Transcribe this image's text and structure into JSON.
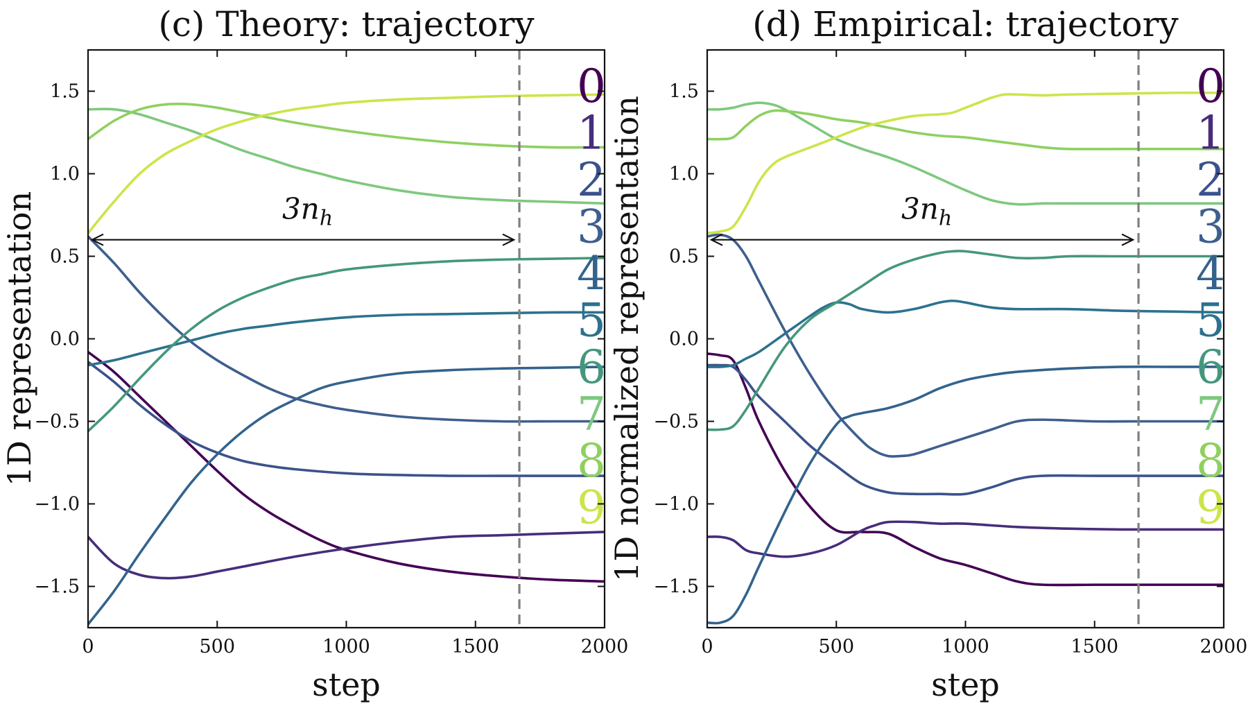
{
  "chart_data": [
    {
      "type": "line",
      "title": "(c) Theory: trajectory",
      "xlabel": "step",
      "ylabel": "1D representation",
      "xlim": [
        0,
        2000
      ],
      "ylim": [
        -1.75,
        1.75
      ],
      "xticks": [
        0,
        500,
        1000,
        1500,
        2000
      ],
      "yticks": [
        -1.5,
        -1.0,
        -0.5,
        0.0,
        0.5,
        1.0,
        1.5
      ],
      "xtick_labels": [
        "0",
        "500",
        "1000",
        "1500",
        "2000"
      ],
      "ytick_labels": [
        "−1.5",
        "−1.0",
        "−0.5",
        "0.0",
        "0.5",
        "1.0",
        "1.5"
      ],
      "vline": 1670,
      "annotation": {
        "text": "3n",
        "sub": "h",
        "x_start": 0,
        "x_end": 1670,
        "y": 0.6
      },
      "series": [
        {
          "name": "0",
          "color": "#440154",
          "x": [
            0,
            100,
            200,
            300,
            400,
            500,
            600,
            700,
            800,
            900,
            1000,
            1200,
            1400,
            1600,
            1800,
            2000
          ],
          "y": [
            -0.08,
            -0.2,
            -0.35,
            -0.5,
            -0.65,
            -0.8,
            -0.94,
            -1.05,
            -1.14,
            -1.22,
            -1.28,
            -1.36,
            -1.41,
            -1.44,
            -1.46,
            -1.47
          ]
        },
        {
          "name": "1",
          "color": "#472d7b",
          "x": [
            0,
            100,
            200,
            300,
            400,
            500,
            600,
            800,
            1000,
            1200,
            1400,
            1600,
            1800,
            2000
          ],
          "y": [
            -1.2,
            -1.36,
            -1.43,
            -1.45,
            -1.44,
            -1.41,
            -1.38,
            -1.32,
            -1.27,
            -1.23,
            -1.2,
            -1.19,
            -1.18,
            -1.17
          ]
        },
        {
          "name": "2",
          "color": "#3b528b",
          "x": [
            0,
            100,
            200,
            300,
            400,
            500,
            600,
            700,
            800,
            1000,
            1200,
            1400,
            1600,
            1800,
            2000
          ],
          "y": [
            -0.14,
            -0.26,
            -0.4,
            -0.52,
            -0.62,
            -0.69,
            -0.74,
            -0.77,
            -0.79,
            -0.815,
            -0.825,
            -0.83,
            -0.83,
            -0.83,
            -0.83
          ]
        },
        {
          "name": "3",
          "color": "#3e5f8e",
          "x": [
            0,
            100,
            200,
            300,
            400,
            500,
            600,
            700,
            800,
            900,
            1000,
            1200,
            1400,
            1600,
            1800,
            2000
          ],
          "y": [
            0.62,
            0.46,
            0.28,
            0.12,
            -0.02,
            -0.13,
            -0.22,
            -0.3,
            -0.36,
            -0.4,
            -0.43,
            -0.47,
            -0.49,
            -0.5,
            -0.5,
            -0.5
          ]
        },
        {
          "name": "4",
          "color": "#33638d",
          "x": [
            0,
            100,
            200,
            300,
            400,
            500,
            600,
            700,
            800,
            900,
            1000,
            1200,
            1400,
            1600,
            1800,
            2000
          ],
          "y": [
            -1.73,
            -1.53,
            -1.3,
            -1.08,
            -0.87,
            -0.7,
            -0.56,
            -0.45,
            -0.37,
            -0.3,
            -0.26,
            -0.21,
            -0.19,
            -0.18,
            -0.175,
            -0.17
          ]
        },
        {
          "name": "5",
          "color": "#2c728e",
          "x": [
            0,
            100,
            200,
            300,
            400,
            500,
            600,
            700,
            800,
            1000,
            1200,
            1400,
            1600,
            1800,
            2000
          ],
          "y": [
            -0.16,
            -0.13,
            -0.09,
            -0.05,
            -0.01,
            0.03,
            0.06,
            0.08,
            0.1,
            0.13,
            0.145,
            0.15,
            0.155,
            0.16,
            0.16
          ]
        },
        {
          "name": "6",
          "color": "#44977d",
          "x": [
            0,
            100,
            200,
            300,
            400,
            500,
            600,
            700,
            800,
            900,
            1000,
            1200,
            1400,
            1600,
            1800,
            2000
          ],
          "y": [
            -0.56,
            -0.41,
            -0.24,
            -0.08,
            0.06,
            0.17,
            0.25,
            0.31,
            0.36,
            0.39,
            0.42,
            0.45,
            0.47,
            0.48,
            0.485,
            0.49
          ]
        },
        {
          "name": "7",
          "color": "#7ec87e",
          "x": [
            0,
            100,
            200,
            300,
            400,
            500,
            600,
            700,
            800,
            900,
            1000,
            1200,
            1400,
            1600,
            1800,
            2000
          ],
          "y": [
            1.39,
            1.39,
            1.36,
            1.31,
            1.26,
            1.2,
            1.14,
            1.09,
            1.04,
            1.0,
            0.96,
            0.9,
            0.86,
            0.84,
            0.83,
            0.82
          ]
        },
        {
          "name": "8",
          "color": "#8fd060",
          "x": [
            0,
            100,
            200,
            300,
            400,
            500,
            600,
            700,
            800,
            1000,
            1200,
            1400,
            1600,
            1800,
            2000
          ],
          "y": [
            1.21,
            1.32,
            1.39,
            1.42,
            1.42,
            1.4,
            1.37,
            1.34,
            1.31,
            1.26,
            1.22,
            1.19,
            1.17,
            1.16,
            1.16
          ]
        },
        {
          "name": "9",
          "color": "#cde44a",
          "x": [
            0,
            100,
            200,
            300,
            400,
            500,
            600,
            700,
            800,
            900,
            1000,
            1200,
            1400,
            1600,
            1800,
            2000
          ],
          "y": [
            0.64,
            0.83,
            1.0,
            1.12,
            1.2,
            1.27,
            1.32,
            1.36,
            1.39,
            1.41,
            1.43,
            1.45,
            1.46,
            1.47,
            1.475,
            1.48
          ]
        }
      ]
    },
    {
      "type": "line",
      "title": "(d) Empirical: trajectory",
      "xlabel": "step",
      "ylabel": "1D normalized representation",
      "xlim": [
        0,
        2000
      ],
      "ylim": [
        -1.75,
        1.75
      ],
      "xticks": [
        0,
        500,
        1000,
        1500,
        2000
      ],
      "yticks": [
        -1.5,
        -1.0,
        -0.5,
        0.0,
        0.5,
        1.0,
        1.5
      ],
      "xtick_labels": [
        "0",
        "500",
        "1000",
        "1500",
        "2000"
      ],
      "ytick_labels": [
        "−1.5",
        "−1.0",
        "−0.5",
        "0.0",
        "0.5",
        "1.0",
        "1.5"
      ],
      "vline": 1670,
      "annotation": {
        "text": "3n",
        "sub": "h",
        "x_start": 0,
        "x_end": 1670,
        "y": 0.6
      },
      "series": [
        {
          "name": "0",
          "color": "#440154",
          "x": [
            0,
            50,
            100,
            150,
            200,
            300,
            400,
            500,
            600,
            700,
            800,
            900,
            1000,
            1100,
            1200,
            1300,
            1500,
            1700,
            2000
          ],
          "y": [
            -0.09,
            -0.1,
            -0.13,
            -0.3,
            -0.5,
            -0.8,
            -1.02,
            -1.16,
            -1.17,
            -1.18,
            -1.26,
            -1.33,
            -1.37,
            -1.42,
            -1.47,
            -1.49,
            -1.49,
            -1.49,
            -1.49
          ]
        },
        {
          "name": "1",
          "color": "#472d7b",
          "x": [
            0,
            50,
            100,
            150,
            200,
            300,
            400,
            500,
            600,
            650,
            700,
            800,
            900,
            1000,
            1200,
            1400,
            1600,
            1800,
            2000
          ],
          "y": [
            -1.2,
            -1.2,
            -1.22,
            -1.28,
            -1.3,
            -1.32,
            -1.3,
            -1.25,
            -1.16,
            -1.13,
            -1.11,
            -1.11,
            -1.12,
            -1.12,
            -1.14,
            -1.15,
            -1.155,
            -1.155,
            -1.155
          ]
        },
        {
          "name": "2",
          "color": "#3b528b",
          "x": [
            0,
            50,
            100,
            150,
            200,
            300,
            400,
            500,
            600,
            700,
            800,
            900,
            1000,
            1100,
            1200,
            1300,
            1500,
            1700,
            2000
          ],
          "y": [
            -0.16,
            -0.16,
            -0.17,
            -0.25,
            -0.35,
            -0.5,
            -0.65,
            -0.77,
            -0.88,
            -0.93,
            -0.94,
            -0.94,
            -0.94,
            -0.9,
            -0.85,
            -0.83,
            -0.83,
            -0.83,
            -0.83
          ]
        },
        {
          "name": "3",
          "color": "#3e5f8e",
          "x": [
            0,
            50,
            100,
            150,
            200,
            300,
            400,
            500,
            600,
            650,
            700,
            750,
            800,
            900,
            1000,
            1100,
            1200,
            1300,
            1500,
            1700,
            2000
          ],
          "y": [
            0.62,
            0.63,
            0.6,
            0.5,
            0.35,
            0.05,
            -0.22,
            -0.45,
            -0.62,
            -0.68,
            -0.71,
            -0.71,
            -0.7,
            -0.65,
            -0.6,
            -0.55,
            -0.5,
            -0.49,
            -0.5,
            -0.5,
            -0.5
          ]
        },
        {
          "name": "4",
          "color": "#33638d",
          "x": [
            0,
            50,
            100,
            150,
            200,
            300,
            400,
            500,
            550,
            600,
            700,
            800,
            900,
            1000,
            1100,
            1200,
            1400,
            1600,
            1800,
            2000
          ],
          "y": [
            -1.72,
            -1.72,
            -1.68,
            -1.55,
            -1.38,
            -1.05,
            -0.75,
            -0.52,
            -0.47,
            -0.45,
            -0.42,
            -0.37,
            -0.3,
            -0.25,
            -0.22,
            -0.2,
            -0.18,
            -0.17,
            -0.17,
            -0.17
          ]
        },
        {
          "name": "5",
          "color": "#2c728e",
          "x": [
            0,
            50,
            100,
            150,
            200,
            300,
            400,
            450,
            500,
            550,
            600,
            700,
            800,
            900,
            950,
            1000,
            1100,
            1200,
            1400,
            1600,
            1800,
            2000
          ],
          "y": [
            -0.17,
            -0.17,
            -0.16,
            -0.12,
            -0.08,
            0.03,
            0.14,
            0.19,
            0.22,
            0.21,
            0.18,
            0.16,
            0.18,
            0.22,
            0.23,
            0.22,
            0.19,
            0.18,
            0.18,
            0.17,
            0.165,
            0.16
          ]
        },
        {
          "name": "6",
          "color": "#44977d",
          "x": [
            0,
            50,
            100,
            150,
            200,
            300,
            400,
            500,
            600,
            700,
            800,
            900,
            950,
            1000,
            1100,
            1200,
            1300,
            1400,
            1600,
            1800,
            2000
          ],
          "y": [
            -0.55,
            -0.55,
            -0.53,
            -0.43,
            -0.3,
            -0.05,
            0.12,
            0.22,
            0.32,
            0.42,
            0.48,
            0.52,
            0.53,
            0.53,
            0.51,
            0.49,
            0.49,
            0.5,
            0.5,
            0.5,
            0.5
          ]
        },
        {
          "name": "7",
          "color": "#7ec87e",
          "x": [
            0,
            50,
            100,
            150,
            200,
            250,
            300,
            400,
            500,
            600,
            700,
            800,
            900,
            1000,
            1100,
            1200,
            1300,
            1400,
            1600,
            1800,
            2000
          ],
          "y": [
            1.39,
            1.39,
            1.4,
            1.42,
            1.43,
            1.42,
            1.39,
            1.3,
            1.21,
            1.15,
            1.1,
            1.04,
            0.97,
            0.9,
            0.84,
            0.815,
            0.82,
            0.82,
            0.82,
            0.82,
            0.82
          ]
        },
        {
          "name": "8",
          "color": "#8fd060",
          "x": [
            0,
            50,
            100,
            150,
            200,
            250,
            300,
            400,
            500,
            600,
            700,
            800,
            900,
            1000,
            1100,
            1200,
            1300,
            1400,
            1600,
            1800,
            2000
          ],
          "y": [
            1.21,
            1.21,
            1.22,
            1.29,
            1.35,
            1.38,
            1.38,
            1.36,
            1.33,
            1.31,
            1.28,
            1.25,
            1.23,
            1.22,
            1.2,
            1.18,
            1.16,
            1.15,
            1.15,
            1.15,
            1.15
          ]
        },
        {
          "name": "9",
          "color": "#cde44a",
          "x": [
            0,
            50,
            100,
            150,
            200,
            250,
            300,
            400,
            500,
            600,
            700,
            800,
            900,
            950,
            1000,
            1050,
            1100,
            1150,
            1200,
            1300,
            1400,
            1600,
            1800,
            2000
          ],
          "y": [
            0.64,
            0.65,
            0.68,
            0.8,
            0.95,
            1.05,
            1.1,
            1.16,
            1.22,
            1.28,
            1.32,
            1.35,
            1.36,
            1.37,
            1.4,
            1.43,
            1.46,
            1.48,
            1.48,
            1.475,
            1.48,
            1.485,
            1.49,
            1.49
          ]
        }
      ]
    }
  ]
}
